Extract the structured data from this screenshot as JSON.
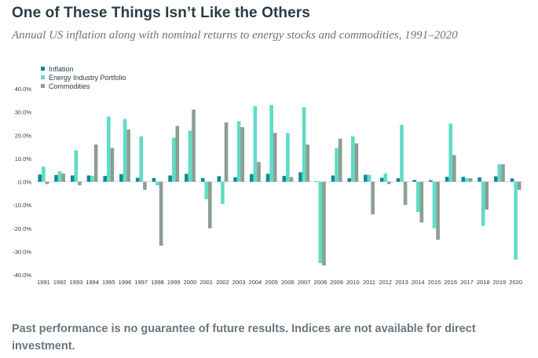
{
  "header": {
    "title": "One of These Things Isn’t Like the Others",
    "subtitle": "Annual US inflation along with nominal returns to energy stocks and commodities, 1991–2020"
  },
  "footnote": "Past performance is no guarantee of future results. Indices are not available for direct investment.",
  "colors": {
    "inflation": "#0e8a8f",
    "energy": "#5fdcc5",
    "commodities": "#8c9e93",
    "axis_text": "#2b3b45"
  },
  "chart_data": {
    "type": "bar",
    "title": "One of These Things Isn’t Like the Others",
    "subtitle": "Annual US inflation along with nominal returns to energy stocks and commodities, 1991–2020",
    "xlabel": "",
    "ylabel": "",
    "ylim": [
      -40,
      40
    ],
    "yticks": [
      40,
      30,
      20,
      10,
      0,
      -10,
      -20,
      -30,
      -40
    ],
    "ytick_labels": [
      "40.0%",
      "30.0%",
      "20.0%",
      "10.0%",
      "0.0%",
      "-10.0%",
      "-20.0%",
      "-30.0%",
      "-40.0%"
    ],
    "grid": false,
    "legend_position": "top-left",
    "categories": [
      "1991",
      "1992",
      "1993",
      "1994",
      "1995",
      "1996",
      "1997",
      "1998",
      "1999",
      "2000",
      "2001",
      "2002",
      "2003",
      "2004",
      "2005",
      "2006",
      "2007",
      "2008",
      "2009",
      "2010",
      "2011",
      "2012",
      "2013",
      "2014",
      "2015",
      "2016",
      "2017",
      "2018",
      "2019",
      "2020"
    ],
    "series": [
      {
        "name": "Inflation",
        "color": "#0e8a8f",
        "values": [
          3.1,
          2.9,
          2.7,
          2.7,
          2.5,
          3.3,
          1.7,
          1.6,
          2.7,
          3.4,
          1.6,
          2.4,
          1.9,
          3.3,
          3.4,
          2.5,
          4.1,
          0.1,
          2.7,
          1.5,
          3.0,
          1.7,
          1.5,
          0.8,
          0.7,
          2.1,
          2.1,
          1.9,
          2.3,
          1.4
        ]
      },
      {
        "name": "Energy Industry Portfolio",
        "color": "#5fdcc5",
        "values": [
          6.5,
          4.5,
          13.5,
          2.5,
          28.0,
          27.0,
          19.5,
          -1.5,
          19.0,
          22.0,
          -7.5,
          -9.5,
          26.0,
          32.5,
          33.0,
          21.0,
          32.0,
          -35.0,
          14.5,
          19.5,
          3.0,
          3.5,
          24.5,
          -13.0,
          -20.0,
          25.0,
          1.5,
          -19.0,
          7.5,
          -33.5
        ]
      },
      {
        "name": "Commodities",
        "color": "#8c9e93",
        "values": [
          -1.0,
          3.5,
          -1.5,
          16.0,
          14.5,
          22.5,
          -3.5,
          -27.5,
          24.0,
          31.0,
          -20.0,
          25.5,
          23.5,
          8.5,
          21.0,
          2.0,
          16.0,
          -36.0,
          18.5,
          16.5,
          -14.0,
          -1.0,
          -10.0,
          -17.5,
          -25.0,
          11.5,
          1.5,
          -12.0,
          7.5,
          -3.5
        ]
      }
    ]
  }
}
